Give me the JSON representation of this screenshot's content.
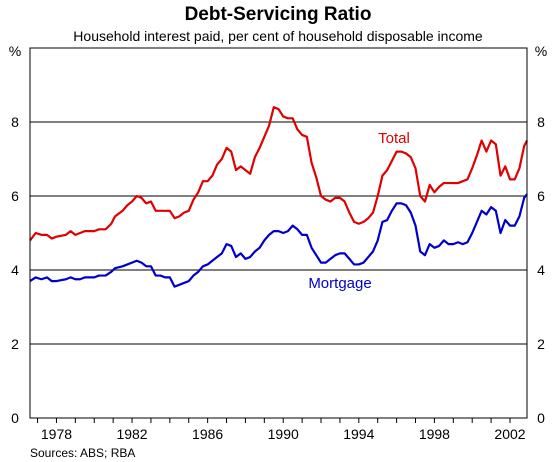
{
  "chart_data": {
    "type": "line",
    "title": "Debt-Servicing Ratio",
    "subtitle": "Household interest paid, per cent of household disposable income",
    "y_unit_label": "%",
    "ylim": [
      0,
      10
    ],
    "y_ticks": [
      "0",
      "2",
      "4",
      "6",
      "8"
    ],
    "xlim": [
      1976.6,
      2002.9
    ],
    "x_tick_labels": [
      {
        "x": 1978,
        "label": "1978"
      },
      {
        "x": 1982,
        "label": "1982"
      },
      {
        "x": 1986,
        "label": "1986"
      },
      {
        "x": 1990,
        "label": "1990"
      },
      {
        "x": 1994,
        "label": "1994"
      },
      {
        "x": 1998,
        "label": "1998"
      },
      {
        "x": 2002,
        "label": "2002"
      }
    ],
    "grid": true,
    "source": "Sources: ABS; RBA",
    "series": [
      {
        "name": "Total",
        "color": "#e00000",
        "points": [
          [
            1976.6,
            4.8
          ],
          [
            1976.9,
            5.0
          ],
          [
            1977.2,
            4.95
          ],
          [
            1977.5,
            4.95
          ],
          [
            1977.75,
            4.85
          ],
          [
            1978.0,
            4.9
          ],
          [
            1978.5,
            4.95
          ],
          [
            1978.75,
            5.05
          ],
          [
            1979.0,
            4.95
          ],
          [
            1979.25,
            5.0
          ],
          [
            1979.5,
            5.05
          ],
          [
            1980.0,
            5.05
          ],
          [
            1980.25,
            5.1
          ],
          [
            1980.6,
            5.1
          ],
          [
            1980.9,
            5.25
          ],
          [
            1981.1,
            5.45
          ],
          [
            1981.5,
            5.6
          ],
          [
            1981.75,
            5.75
          ],
          [
            1982.0,
            5.85
          ],
          [
            1982.25,
            6.0
          ],
          [
            1982.5,
            5.95
          ],
          [
            1982.75,
            5.8
          ],
          [
            1983.0,
            5.85
          ],
          [
            1983.25,
            5.6
          ],
          [
            1983.5,
            5.6
          ],
          [
            1983.75,
            5.6
          ],
          [
            1984.0,
            5.6
          ],
          [
            1984.25,
            5.4
          ],
          [
            1984.5,
            5.45
          ],
          [
            1984.75,
            5.55
          ],
          [
            1985.0,
            5.6
          ],
          [
            1985.25,
            5.9
          ],
          [
            1985.5,
            6.1
          ],
          [
            1985.75,
            6.4
          ],
          [
            1986.0,
            6.4
          ],
          [
            1986.25,
            6.55
          ],
          [
            1986.5,
            6.85
          ],
          [
            1986.75,
            7.0
          ],
          [
            1987.0,
            7.3
          ],
          [
            1987.25,
            7.2
          ],
          [
            1987.5,
            6.7
          ],
          [
            1987.75,
            6.8
          ],
          [
            1988.0,
            6.7
          ],
          [
            1988.25,
            6.6
          ],
          [
            1988.5,
            7.05
          ],
          [
            1988.75,
            7.3
          ],
          [
            1989.0,
            7.6
          ],
          [
            1989.25,
            7.9
          ],
          [
            1989.5,
            8.4
          ],
          [
            1989.75,
            8.35
          ],
          [
            1990.0,
            8.15
          ],
          [
            1990.25,
            8.1
          ],
          [
            1990.5,
            8.1
          ],
          [
            1990.75,
            7.8
          ],
          [
            1991.0,
            7.65
          ],
          [
            1991.25,
            7.6
          ],
          [
            1991.5,
            6.9
          ],
          [
            1991.75,
            6.5
          ],
          [
            1992.0,
            6.0
          ],
          [
            1992.25,
            5.9
          ],
          [
            1992.5,
            5.85
          ],
          [
            1992.75,
            5.95
          ],
          [
            1993.0,
            5.95
          ],
          [
            1993.25,
            5.85
          ],
          [
            1993.5,
            5.55
          ],
          [
            1993.75,
            5.3
          ],
          [
            1994.0,
            5.25
          ],
          [
            1994.25,
            5.3
          ],
          [
            1994.5,
            5.4
          ],
          [
            1994.75,
            5.55
          ],
          [
            1995.0,
            6.0
          ],
          [
            1995.25,
            6.55
          ],
          [
            1995.5,
            6.7
          ],
          [
            1995.75,
            6.95
          ],
          [
            1996.0,
            7.2
          ],
          [
            1996.25,
            7.2
          ],
          [
            1996.5,
            7.15
          ],
          [
            1996.75,
            7.05
          ],
          [
            1997.0,
            6.75
          ],
          [
            1997.25,
            6.0
          ],
          [
            1997.5,
            5.85
          ],
          [
            1997.75,
            6.3
          ],
          [
            1998.0,
            6.1
          ],
          [
            1998.25,
            6.25
          ],
          [
            1998.5,
            6.35
          ],
          [
            1998.75,
            6.35
          ],
          [
            1999.0,
            6.35
          ],
          [
            1999.25,
            6.35
          ],
          [
            1999.5,
            6.4
          ],
          [
            1999.75,
            6.45
          ],
          [
            2000.0,
            6.75
          ],
          [
            2000.25,
            7.1
          ],
          [
            2000.5,
            7.5
          ],
          [
            2000.75,
            7.2
          ],
          [
            2001.0,
            7.5
          ],
          [
            2001.25,
            7.4
          ],
          [
            2001.5,
            6.55
          ],
          [
            2001.75,
            6.8
          ],
          [
            2002.0,
            6.45
          ],
          [
            2002.25,
            6.45
          ],
          [
            2002.5,
            6.75
          ],
          [
            2002.75,
            7.35
          ],
          [
            2002.9,
            7.5
          ]
        ]
      },
      {
        "name": "Mortgage",
        "color": "#0000cc",
        "points": [
          [
            1976.6,
            3.7
          ],
          [
            1976.9,
            3.8
          ],
          [
            1977.2,
            3.75
          ],
          [
            1977.5,
            3.8
          ],
          [
            1977.75,
            3.7
          ],
          [
            1978.0,
            3.7
          ],
          [
            1978.5,
            3.75
          ],
          [
            1978.75,
            3.8
          ],
          [
            1979.0,
            3.75
          ],
          [
            1979.25,
            3.75
          ],
          [
            1979.5,
            3.8
          ],
          [
            1980.0,
            3.8
          ],
          [
            1980.25,
            3.85
          ],
          [
            1980.6,
            3.85
          ],
          [
            1980.9,
            3.95
          ],
          [
            1981.1,
            4.05
          ],
          [
            1981.5,
            4.1
          ],
          [
            1981.75,
            4.15
          ],
          [
            1982.0,
            4.2
          ],
          [
            1982.25,
            4.25
          ],
          [
            1982.5,
            4.2
          ],
          [
            1982.75,
            4.1
          ],
          [
            1983.0,
            4.1
          ],
          [
            1983.25,
            3.85
          ],
          [
            1983.5,
            3.85
          ],
          [
            1983.75,
            3.8
          ],
          [
            1984.0,
            3.8
          ],
          [
            1984.25,
            3.55
          ],
          [
            1984.5,
            3.6
          ],
          [
            1984.75,
            3.65
          ],
          [
            1985.0,
            3.7
          ],
          [
            1985.25,
            3.85
          ],
          [
            1985.5,
            3.95
          ],
          [
            1985.75,
            4.1
          ],
          [
            1986.0,
            4.15
          ],
          [
            1986.25,
            4.25
          ],
          [
            1986.5,
            4.35
          ],
          [
            1986.75,
            4.45
          ],
          [
            1987.0,
            4.7
          ],
          [
            1987.25,
            4.65
          ],
          [
            1987.5,
            4.35
          ],
          [
            1987.75,
            4.45
          ],
          [
            1988.0,
            4.3
          ],
          [
            1988.25,
            4.35
          ],
          [
            1988.5,
            4.5
          ],
          [
            1988.75,
            4.6
          ],
          [
            1989.0,
            4.8
          ],
          [
            1989.25,
            4.95
          ],
          [
            1989.5,
            5.05
          ],
          [
            1989.75,
            5.05
          ],
          [
            1990.0,
            5.0
          ],
          [
            1990.25,
            5.05
          ],
          [
            1990.5,
            5.2
          ],
          [
            1990.75,
            5.1
          ],
          [
            1991.0,
            4.95
          ],
          [
            1991.25,
            4.95
          ],
          [
            1991.5,
            4.6
          ],
          [
            1991.75,
            4.4
          ],
          [
            1992.0,
            4.2
          ],
          [
            1992.25,
            4.2
          ],
          [
            1992.5,
            4.3
          ],
          [
            1992.75,
            4.4
          ],
          [
            1993.0,
            4.45
          ],
          [
            1993.25,
            4.45
          ],
          [
            1993.5,
            4.3
          ],
          [
            1993.75,
            4.15
          ],
          [
            1994.0,
            4.15
          ],
          [
            1994.25,
            4.2
          ],
          [
            1994.5,
            4.35
          ],
          [
            1994.75,
            4.5
          ],
          [
            1995.0,
            4.8
          ],
          [
            1995.25,
            5.3
          ],
          [
            1995.5,
            5.35
          ],
          [
            1995.75,
            5.6
          ],
          [
            1996.0,
            5.8
          ],
          [
            1996.25,
            5.8
          ],
          [
            1996.5,
            5.75
          ],
          [
            1996.75,
            5.55
          ],
          [
            1997.0,
            5.2
          ],
          [
            1997.25,
            4.5
          ],
          [
            1997.5,
            4.4
          ],
          [
            1997.75,
            4.7
          ],
          [
            1998.0,
            4.6
          ],
          [
            1998.25,
            4.65
          ],
          [
            1998.5,
            4.8
          ],
          [
            1998.75,
            4.7
          ],
          [
            1999.0,
            4.7
          ],
          [
            1999.25,
            4.75
          ],
          [
            1999.5,
            4.7
          ],
          [
            1999.75,
            4.75
          ],
          [
            2000.0,
            5.0
          ],
          [
            2000.25,
            5.3
          ],
          [
            2000.5,
            5.6
          ],
          [
            2000.75,
            5.5
          ],
          [
            2001.0,
            5.7
          ],
          [
            2001.25,
            5.6
          ],
          [
            2001.5,
            5.0
          ],
          [
            2001.75,
            5.35
          ],
          [
            2002.0,
            5.2
          ],
          [
            2002.25,
            5.2
          ],
          [
            2002.5,
            5.45
          ],
          [
            2002.75,
            5.95
          ],
          [
            2002.9,
            6.05
          ]
        ]
      }
    ]
  }
}
